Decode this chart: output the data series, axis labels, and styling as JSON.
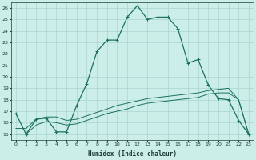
{
  "xlabel": "Humidex (Indice chaleur)",
  "background_color": "#cceee8",
  "grid_color": "#aad4ce",
  "line_color": "#1a7060",
  "xlim": [
    -0.5,
    23.5
  ],
  "ylim": [
    14.5,
    26.5
  ],
  "xticks": [
    0,
    1,
    2,
    3,
    4,
    5,
    6,
    7,
    8,
    9,
    10,
    11,
    12,
    13,
    14,
    15,
    16,
    17,
    18,
    19,
    20,
    21,
    22,
    23
  ],
  "yticks": [
    15,
    16,
    17,
    18,
    19,
    20,
    21,
    22,
    23,
    24,
    25,
    26
  ],
  "series1_x": [
    0,
    1,
    2,
    3,
    4,
    5,
    6,
    7,
    8,
    9,
    10,
    11,
    12,
    13,
    14,
    15,
    16,
    17,
    18,
    19,
    20,
    21,
    22,
    23
  ],
  "series1_y": [
    16.8,
    15.0,
    16.3,
    16.4,
    15.2,
    15.2,
    17.5,
    19.4,
    22.2,
    23.2,
    23.2,
    25.2,
    26.2,
    25.0,
    25.2,
    25.2,
    24.2,
    21.2,
    21.5,
    19.3,
    18.1,
    18.0,
    16.2,
    15.0
  ],
  "series2_x": [
    0,
    1,
    2,
    3,
    4,
    5,
    6,
    7,
    8,
    9,
    10,
    11,
    12,
    13,
    14,
    15,
    16,
    17,
    18,
    19,
    20,
    21,
    22,
    23
  ],
  "series2_y": [
    15.5,
    15.5,
    16.3,
    16.5,
    16.5,
    16.2,
    16.3,
    16.6,
    16.9,
    17.2,
    17.5,
    17.7,
    17.9,
    18.1,
    18.2,
    18.3,
    18.4,
    18.5,
    18.6,
    18.8,
    18.9,
    19.0,
    18.0,
    15.0
  ],
  "series3_x": [
    0,
    1,
    2,
    3,
    4,
    5,
    6,
    7,
    8,
    9,
    10,
    11,
    12,
    13,
    14,
    15,
    16,
    17,
    18,
    19,
    20,
    21,
    22,
    23
  ],
  "series3_y": [
    15.0,
    15.0,
    15.8,
    16.1,
    16.0,
    15.8,
    15.9,
    16.2,
    16.5,
    16.8,
    17.0,
    17.2,
    17.5,
    17.7,
    17.8,
    17.9,
    18.0,
    18.1,
    18.2,
    18.5,
    18.6,
    18.6,
    18.0,
    15.0
  ]
}
